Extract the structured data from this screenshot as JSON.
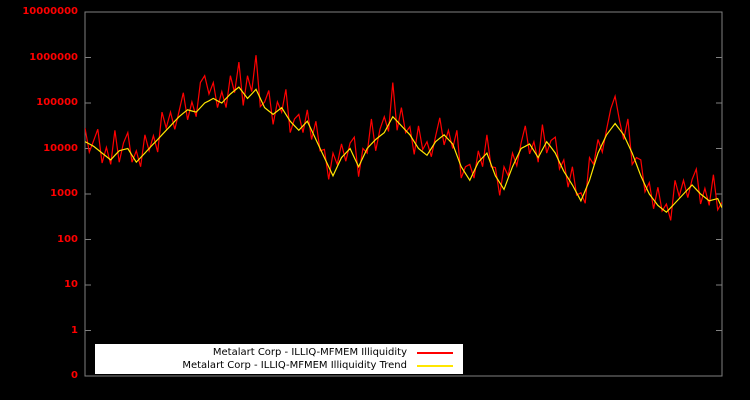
{
  "window": {
    "background": "#000000"
  },
  "chart_data": {
    "type": "line",
    "title": "",
    "xlabel": "",
    "ylabel": "",
    "yscale": "log",
    "grid": false,
    "legend_position": "bottom-center",
    "legend_background": "#ffffff",
    "legend_text_color": "#000000",
    "axis_color": "#808080",
    "tick_label_color": "#ff0000",
    "ytick_labels": [
      "10000000",
      "1000000",
      "100000",
      "10000",
      "1000",
      "100",
      "10",
      "1",
      "0"
    ],
    "ylim_log_decades": [
      0,
      7
    ],
    "x_count": 150,
    "series": [
      {
        "name": "Metalart Corp - ILLIQ-MFMEM Illiquidity",
        "color": "#ff0000",
        "values": [
          28200,
          8320,
          14800,
          26600,
          4790,
          10600,
          4470,
          25100,
          5010,
          13300,
          22400,
          5010,
          8910,
          3980,
          20000,
          8910,
          19100,
          8320,
          63100,
          28200,
          63100,
          26300,
          66100,
          168000,
          42700,
          106000,
          50100,
          282000,
          398000,
          158000,
          282000,
          79400,
          178000,
          79400,
          398000,
          168000,
          794000,
          88100,
          398000,
          178000,
          1122000,
          83200,
          104700,
          188000,
          33900,
          106000,
          63100,
          200000,
          22400,
          44700,
          56200,
          22400,
          70800,
          15800,
          39800,
          8910,
          9550,
          2090,
          7940,
          4470,
          12600,
          5250,
          13200,
          17800,
          2400,
          10000,
          7940,
          44700,
          8910,
          26600,
          50100,
          23700,
          282000,
          25100,
          79400,
          22400,
          30200,
          7410,
          31600,
          9440,
          14100,
          6610,
          18600,
          47300,
          12000,
          25100,
          10000,
          25100,
          2240,
          3980,
          4470,
          2240,
          8910,
          3980,
          20000,
          3980,
          3800,
          933,
          3980,
          2510,
          7940,
          4170,
          13200,
          31600,
          7590,
          14100,
          5010,
          33500,
          7940,
          15000,
          17800,
          3550,
          5620,
          1410,
          3980,
          944,
          1070,
          624,
          6310,
          4470,
          15800,
          8320,
          26300,
          75000,
          141000,
          42200,
          15800,
          44700,
          4470,
          6310,
          5620,
          1120,
          1780,
          473,
          1410,
          422,
          603,
          263,
          2000,
          891,
          2000,
          832,
          2090,
          3550,
          603,
          1330,
          562,
          2660,
          447,
          661
        ]
      },
      {
        "name": "Metalart Corp - ILLIQ-MFMEM Illiquidity Trend",
        "color": "#ffe600",
        "values": [
          14100,
          12600,
          11200,
          9440,
          7940,
          6680,
          5620,
          7080,
          8910,
          9440,
          10000,
          7080,
          5010,
          6310,
          7940,
          10000,
          12600,
          15800,
          20000,
          25100,
          31600,
          39800,
          50100,
          59600,
          70800,
          66800,
          63100,
          79400,
          100000,
          112000,
          126000,
          112000,
          100000,
          126000,
          158000,
          188000,
          224000,
          168000,
          126000,
          158000,
          200000,
          126000,
          79400,
          66800,
          56200,
          66800,
          79400,
          56200,
          39800,
          31600,
          25100,
          31600,
          39800,
          25100,
          15800,
          10000,
          6310,
          3980,
          2510,
          3980,
          6310,
          7940,
          10000,
          6310,
          3980,
          6310,
          10000,
          12600,
          15800,
          18800,
          22400,
          33500,
          50100,
          39800,
          31600,
          25100,
          20000,
          14100,
          10000,
          8410,
          7080,
          10000,
          14100,
          16800,
          20000,
          15800,
          12600,
          7080,
          3980,
          2820,
          2000,
          3160,
          5010,
          6310,
          7940,
          4470,
          2510,
          1780,
          1260,
          2240,
          3980,
          6310,
          10000,
          11200,
          12600,
          8910,
          6310,
          9440,
          14100,
          10600,
          7940,
          5010,
          3160,
          2240,
          1580,
          1060,
          708,
          1190,
          2000,
          3980,
          7940,
          12600,
          20000,
          26600,
          35500,
          26600,
          20000,
          12600,
          7940,
          4470,
          2510,
          1580,
          1000,
          750,
          562,
          473,
          398,
          501,
          631,
          794,
          1000,
          1260,
          1580,
          1260,
          1000,
          841,
          708,
          750,
          794,
          501
        ]
      }
    ]
  }
}
